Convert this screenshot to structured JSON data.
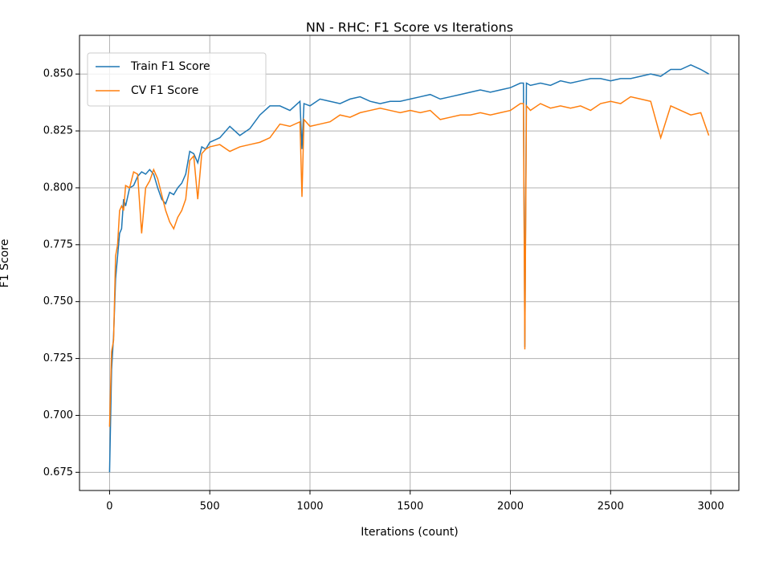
{
  "chart_data": {
    "type": "line",
    "title": "NN - RHC: F1 Score vs Iterations",
    "x_label": "Iterations (count)",
    "y_label": "F1 Score",
    "x": [
      0,
      10,
      20,
      30,
      40,
      50,
      60,
      70,
      80,
      100,
      120,
      140,
      160,
      180,
      200,
      220,
      240,
      260,
      280,
      300,
      320,
      340,
      360,
      380,
      400,
      420,
      440,
      460,
      480,
      500,
      550,
      600,
      650,
      700,
      750,
      800,
      850,
      900,
      950,
      960,
      970,
      1000,
      1050,
      1100,
      1150,
      1200,
      1250,
      1300,
      1350,
      1400,
      1450,
      1500,
      1550,
      1600,
      1650,
      1700,
      1750,
      1800,
      1850,
      1900,
      1950,
      2000,
      2050,
      2065,
      2072,
      2080,
      2100,
      2150,
      2200,
      2250,
      2300,
      2350,
      2400,
      2450,
      2500,
      2550,
      2600,
      2650,
      2700,
      2750,
      2800,
      2850,
      2900,
      2950,
      2990
    ],
    "series": [
      {
        "name": "Train F1 Score",
        "color": "#1f77b4",
        "values": [
          0.675,
          0.72,
          0.735,
          0.76,
          0.77,
          0.78,
          0.782,
          0.795,
          0.792,
          0.8,
          0.801,
          0.805,
          0.807,
          0.806,
          0.808,
          0.806,
          0.8,
          0.795,
          0.793,
          0.798,
          0.797,
          0.8,
          0.802,
          0.806,
          0.816,
          0.815,
          0.811,
          0.818,
          0.817,
          0.82,
          0.822,
          0.827,
          0.823,
          0.826,
          0.832,
          0.836,
          0.836,
          0.834,
          0.838,
          0.817,
          0.837,
          0.836,
          0.839,
          0.838,
          0.837,
          0.839,
          0.84,
          0.838,
          0.837,
          0.838,
          0.838,
          0.839,
          0.84,
          0.841,
          0.839,
          0.84,
          0.841,
          0.842,
          0.843,
          0.842,
          0.843,
          0.844,
          0.846,
          0.846,
          0.73,
          0.846,
          0.845,
          0.846,
          0.845,
          0.847,
          0.846,
          0.847,
          0.848,
          0.848,
          0.847,
          0.848,
          0.848,
          0.849,
          0.85,
          0.849,
          0.852,
          0.852,
          0.854,
          0.852,
          0.85
        ]
      },
      {
        "name": "CV F1 Score",
        "color": "#ff7f0e",
        "values": [
          0.695,
          0.728,
          0.733,
          0.77,
          0.775,
          0.79,
          0.792,
          0.79,
          0.801,
          0.8,
          0.807,
          0.806,
          0.78,
          0.8,
          0.803,
          0.808,
          0.804,
          0.797,
          0.79,
          0.785,
          0.782,
          0.787,
          0.79,
          0.795,
          0.812,
          0.814,
          0.795,
          0.815,
          0.817,
          0.818,
          0.819,
          0.816,
          0.818,
          0.819,
          0.82,
          0.822,
          0.828,
          0.827,
          0.829,
          0.796,
          0.83,
          0.827,
          0.828,
          0.829,
          0.832,
          0.831,
          0.833,
          0.834,
          0.835,
          0.834,
          0.833,
          0.834,
          0.833,
          0.834,
          0.83,
          0.831,
          0.832,
          0.832,
          0.833,
          0.832,
          0.833,
          0.834,
          0.837,
          0.837,
          0.729,
          0.836,
          0.834,
          0.837,
          0.835,
          0.836,
          0.835,
          0.836,
          0.834,
          0.837,
          0.838,
          0.837,
          0.84,
          0.839,
          0.838,
          0.822,
          0.836,
          0.834,
          0.832,
          0.833,
          0.823
        ]
      }
    ],
    "xlim": [
      -150,
      3140
    ],
    "ylim": [
      0.667,
      0.867
    ],
    "xticks": [
      0,
      500,
      1000,
      1500,
      2000,
      2500,
      3000
    ],
    "yticks": [
      0.675,
      {
        "value": 0.7,
        "label": "0.700"
      },
      0.725,
      {
        "value": 0.75,
        "label": "0.750"
      },
      0.775,
      {
        "value": 0.8,
        "label": "0.800"
      },
      0.825,
      {
        "value": 0.85,
        "label": "0.850"
      }
    ],
    "grid": true,
    "legend": "upper left"
  }
}
